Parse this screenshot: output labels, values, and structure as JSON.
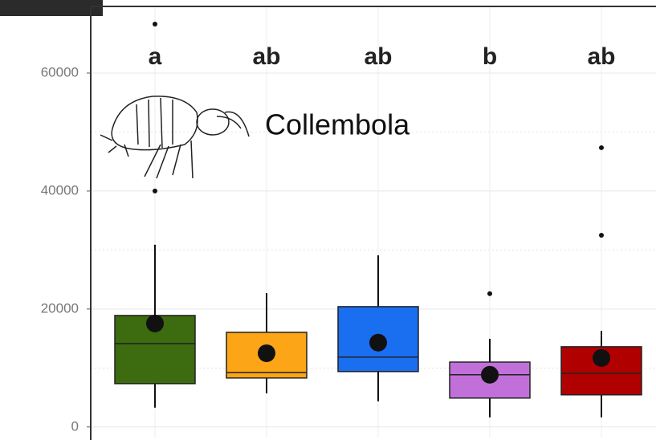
{
  "chart_data": {
    "type": "box",
    "annotation": "Collembola",
    "categories": [
      null,
      null,
      null,
      null,
      null
    ],
    "group_letters": [
      "a",
      "ab",
      "ab",
      "b",
      "ab"
    ],
    "boxes": [
      {
        "color": "#3d6b0f",
        "whislo": 3270,
        "q1": 7350,
        "med": 14150,
        "q3": 18900,
        "whishi": 30900,
        "mean": 17550,
        "fliers": [
          40000,
          68300
        ]
      },
      {
        "color": "#fca516",
        "whislo": 5700,
        "q1": 8300,
        "med": 9250,
        "q3": 16050,
        "whishi": 22700,
        "mean": 12500,
        "fliers": []
      },
      {
        "color": "#1a6ef0",
        "whislo": 4350,
        "q1": 9400,
        "med": 11850,
        "q3": 20400,
        "whishi": 29100,
        "mean": 14300,
        "fliers": []
      },
      {
        "color": "#c070d8",
        "whislo": 1630,
        "q1": 4900,
        "med": 8850,
        "q3": 11000,
        "whishi": 14950,
        "mean": 8850,
        "fliers": [
          22600
        ]
      },
      {
        "color": "#b00000",
        "whislo": 1630,
        "q1": 5450,
        "med": 9100,
        "q3": 13600,
        "whishi": 16300,
        "mean": 11700,
        "fliers": [
          32500,
          47350
        ]
      }
    ],
    "ylim": [
      -1800,
      71300
    ],
    "yticks": [
      0,
      20000,
      40000,
      60000
    ],
    "minor_yticks": [
      10000,
      30000,
      50000
    ],
    "grid": true
  }
}
